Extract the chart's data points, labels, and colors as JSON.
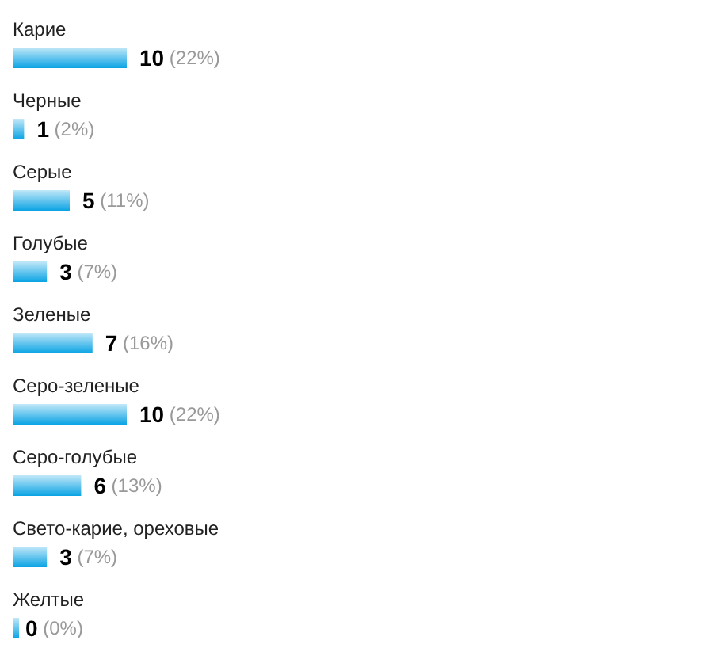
{
  "chart_data": {
    "type": "bar",
    "orientation": "horizontal",
    "categories": [
      "Карие",
      "Черные",
      "Серые",
      "Голубые",
      "Зеленые",
      "Серо-зеленые",
      "Серо-голубые",
      "Свето-карие, ореховые",
      "Желтые"
    ],
    "values": [
      10,
      1,
      5,
      3,
      7,
      10,
      6,
      3,
      0
    ],
    "value_labels": [
      "10 (22%)",
      "1 (2%)",
      "5 (11%)",
      "3 (7%)",
      "7 (16%)",
      "10 (22%)",
      "6 (13%)",
      "3 (7%)",
      "0 (0%)"
    ],
    "color": "#0aa3e4",
    "tick_labels": "y"
  }
}
